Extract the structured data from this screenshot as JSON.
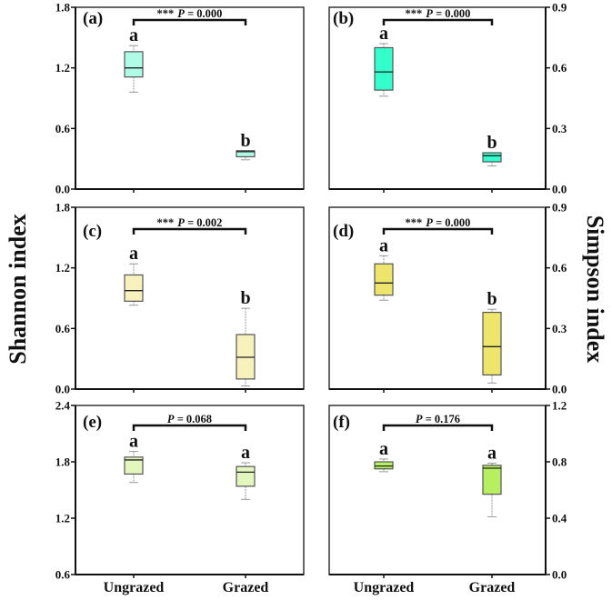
{
  "chart_data": {
    "type": "box",
    "y_label_left": "Shannon index",
    "y_label_right": "Simpson index",
    "categories": [
      "Ungrazed",
      "Grazed"
    ],
    "panels": [
      {
        "label": "(a)",
        "index": "Shannon",
        "axis": "left",
        "ylim": [
          0,
          1.8
        ],
        "ticks": [
          "0.0",
          "0.6",
          "1.2",
          "1.8"
        ],
        "tick_values": [
          0,
          0.6,
          1.2,
          1.8
        ],
        "sig": "***",
        "p_italic": "P",
        "p_value": " = 0.000",
        "color": "#aefbe6",
        "boxes": [
          {
            "min": 0.96,
            "q1": 1.11,
            "median": 1.2,
            "q3": 1.36,
            "max": 1.42,
            "letter": "a"
          },
          {
            "min": 0.29,
            "q1": 0.32,
            "median": 0.37,
            "q3": 0.38,
            "max": 0.38,
            "letter": "b"
          }
        ]
      },
      {
        "label": "(b)",
        "index": "Simpson",
        "axis": "right",
        "ylim": [
          0,
          0.9
        ],
        "ticks": [
          "0.0",
          "0.3",
          "0.6",
          "0.9"
        ],
        "tick_values": [
          0,
          0.3,
          0.6,
          0.9
        ],
        "sig": "***",
        "p_italic": "P",
        "p_value": " = 0.000",
        "color": "#33ffcc",
        "boxes": [
          {
            "min": 0.46,
            "q1": 0.49,
            "median": 0.58,
            "q3": 0.7,
            "max": 0.72,
            "letter": "a"
          },
          {
            "min": 0.115,
            "q1": 0.135,
            "median": 0.165,
            "q3": 0.18,
            "max": 0.18,
            "letter": "b"
          }
        ]
      },
      {
        "label": "(c)",
        "index": "Shannon",
        "axis": "left",
        "ylim": [
          0,
          1.8
        ],
        "ticks": [
          "0.0",
          "0.6",
          "1.2",
          "1.8"
        ],
        "tick_values": [
          0,
          0.6,
          1.2,
          1.8
        ],
        "sig": "***",
        "p_italic": "P",
        "p_value": " = 0.002",
        "color": "#f6f1bd",
        "boxes": [
          {
            "min": 0.83,
            "q1": 0.87,
            "median": 0.975,
            "q3": 1.13,
            "max": 1.24,
            "letter": "a"
          },
          {
            "min": 0.03,
            "q1": 0.1,
            "median": 0.315,
            "q3": 0.54,
            "max": 0.8,
            "letter": "b"
          }
        ]
      },
      {
        "label": "(d)",
        "index": "Simpson",
        "axis": "right",
        "ylim": [
          0,
          0.9
        ],
        "ticks": [
          "0.0",
          "0.3",
          "0.6",
          "0.9"
        ],
        "tick_values": [
          0,
          0.3,
          0.6,
          0.9
        ],
        "sig": "***",
        "p_italic": "P",
        "p_value": " = 0.000",
        "color": "#ede56c",
        "boxes": [
          {
            "min": 0.44,
            "q1": 0.465,
            "median": 0.525,
            "q3": 0.62,
            "max": 0.66,
            "letter": "a"
          },
          {
            "min": 0.03,
            "q1": 0.07,
            "median": 0.21,
            "q3": 0.38,
            "max": 0.395,
            "letter": "b"
          }
        ]
      },
      {
        "label": "(e)",
        "index": "Shannon",
        "axis": "left",
        "ylim": [
          0.6,
          2.4
        ],
        "ticks": [
          "0.6",
          "1.2",
          "1.8",
          "2.4"
        ],
        "tick_values": [
          0.6,
          1.2,
          1.8,
          2.4
        ],
        "sig": "",
        "p_italic": "P",
        "p_value": " = 0.068",
        "color": "#e3f6bd",
        "boxes": [
          {
            "min": 1.58,
            "q1": 1.67,
            "median": 1.82,
            "q3": 1.85,
            "max": 1.91,
            "letter": "a"
          },
          {
            "min": 1.4,
            "q1": 1.54,
            "median": 1.69,
            "q3": 1.75,
            "max": 1.79,
            "letter": "a"
          }
        ]
      },
      {
        "label": "(f)",
        "index": "Simpson",
        "axis": "right",
        "ylim": [
          0,
          1.2
        ],
        "ticks": [
          "0.0",
          "0.4",
          "0.8",
          "1.2"
        ],
        "tick_values": [
          0,
          0.4,
          0.8,
          1.2
        ],
        "sig": "",
        "p_italic": "P",
        "p_value": " = 0.176",
        "color": "#b6ef60",
        "boxes": [
          {
            "min": 0.73,
            "q1": 0.75,
            "median": 0.77,
            "q3": 0.8,
            "max": 0.82,
            "letter": "a"
          },
          {
            "min": 0.41,
            "q1": 0.57,
            "median": 0.755,
            "q3": 0.775,
            "max": 0.79,
            "letter": "a"
          }
        ]
      }
    ]
  }
}
